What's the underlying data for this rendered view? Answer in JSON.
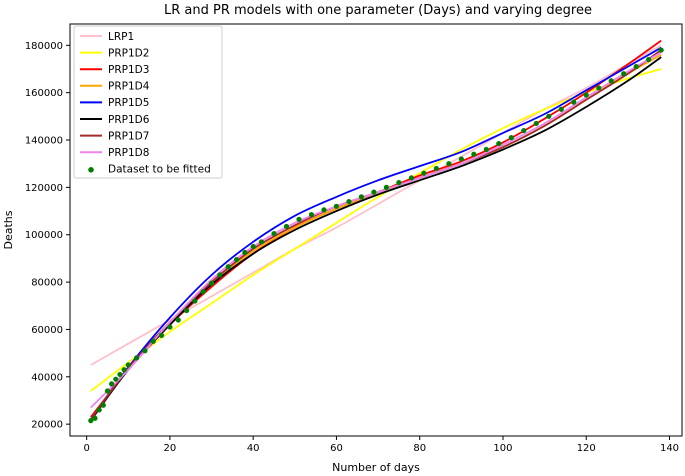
{
  "chart_data": {
    "type": "line",
    "title": "LR and PR models with one parameter (Days) and varying degree",
    "xlabel": "Number of days",
    "ylabel": "Deaths",
    "xlim": [
      -4,
      143
    ],
    "ylim": [
      15000,
      189000
    ],
    "xticks": [
      0,
      20,
      40,
      60,
      80,
      100,
      120,
      140
    ],
    "yticks": [
      20000,
      40000,
      60000,
      80000,
      100000,
      120000,
      140000,
      160000,
      180000
    ],
    "grid": false,
    "legend_position": "top-left",
    "x": [
      1,
      10,
      20,
      30,
      40,
      50,
      60,
      70,
      80,
      90,
      100,
      110,
      120,
      130,
      138
    ],
    "series": [
      {
        "name": "LRP1",
        "color": "#ffc0cb",
        "values": [
          45000,
          54000,
          64000,
          74000,
          84000,
          94000,
          103000,
          113000,
          123000,
          133000,
          143000,
          153000,
          162000,
          172000,
          180000
        ]
      },
      {
        "name": "PRP1D2",
        "color": "#ffff00",
        "values": [
          34000,
          46000,
          59000,
          71000,
          83000,
          94000,
          105000,
          116000,
          126000,
          136000,
          145000,
          153000,
          160000,
          166000,
          170000
        ]
      },
      {
        "name": "PRP1D3",
        "color": "#ff0000",
        "values": [
          23000,
          43000,
          62000,
          78000,
          92000,
          103000,
          111000,
          118000,
          125000,
          131000,
          139000,
          149000,
          160000,
          172000,
          182000
        ]
      },
      {
        "name": "PRP1D4",
        "color": "#ffa500",
        "values": [
          22000,
          44000,
          63000,
          80000,
          93000,
          103000,
          111000,
          118000,
          124000,
          130000,
          137000,
          146000,
          157000,
          168000,
          176000
        ]
      },
      {
        "name": "PRP1D5",
        "color": "#0000ff",
        "values": [
          22000,
          44000,
          65000,
          83000,
          97000,
          108000,
          116000,
          123000,
          129000,
          135000,
          143000,
          151000,
          161000,
          171000,
          179000
        ]
      },
      {
        "name": "PRP1D6",
        "color": "#000000",
        "values": [
          21500,
          43000,
          62000,
          79000,
          92000,
          102000,
          110000,
          117000,
          123000,
          129000,
          136000,
          144000,
          154000,
          165000,
          175000
        ]
      },
      {
        "name": "PRP1D7",
        "color": "#a52a2a",
        "values": [
          22000,
          43500,
          63000,
          80000,
          94000,
          104000,
          112000,
          118000,
          124000,
          130000,
          137000,
          146000,
          157000,
          168000,
          178000
        ]
      },
      {
        "name": "PRP1D8",
        "color": "#ee82ee",
        "values": [
          27000,
          43000,
          63000,
          81000,
          95000,
          105000,
          112000,
          118000,
          124000,
          130000,
          138000,
          147000,
          158000,
          169000,
          177000
        ]
      }
    ],
    "scatter": {
      "name": "Dataset to be fitted",
      "color": "#008000",
      "x": [
        1,
        2,
        3,
        4,
        5,
        6,
        7,
        8,
        9,
        10,
        12,
        14,
        16,
        18,
        20,
        22,
        24,
        26,
        28,
        30,
        32,
        34,
        36,
        38,
        40,
        42,
        45,
        48,
        51,
        54,
        57,
        60,
        63,
        66,
        69,
        72,
        75,
        78,
        81,
        84,
        87,
        90,
        93,
        96,
        99,
        102,
        105,
        108,
        111,
        114,
        117,
        120,
        123,
        126,
        129,
        132,
        135,
        138
      ],
      "y": [
        21500,
        22500,
        26000,
        28000,
        34000,
        37000,
        39000,
        41000,
        43000,
        45000,
        48000,
        51000,
        55000,
        57500,
        61000,
        64000,
        68000,
        72000,
        76000,
        79500,
        83000,
        86500,
        89500,
        92500,
        95000,
        97000,
        100500,
        103500,
        106500,
        108500,
        110500,
        112000,
        114000,
        116000,
        118000,
        120000,
        122000,
        124000,
        126000,
        128000,
        130000,
        132000,
        134000,
        136000,
        138500,
        141000,
        144000,
        147000,
        150000,
        153000,
        156000,
        159000,
        162000,
        165000,
        168000,
        171000,
        174000,
        178000
      ]
    }
  }
}
